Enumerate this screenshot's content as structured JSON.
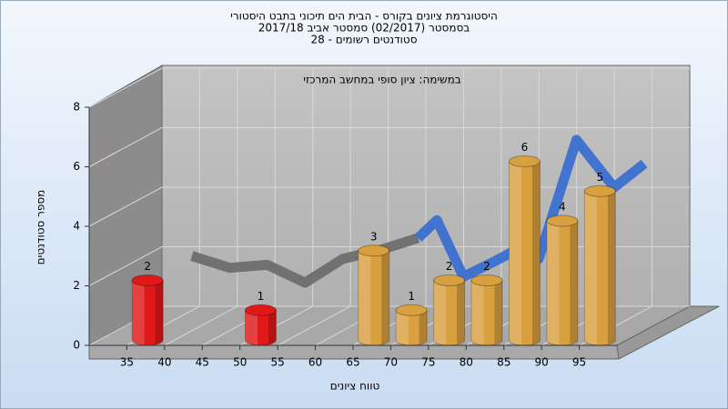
{
  "chart_data": {
    "type": "histogram",
    "title_lines": [
      "היסטוגרמת ציונים בקורס - הבית הים תיכוני בתבט היסטורי",
      "בסמסטר  (02/2017)  סמסטר אביב 2017/18",
      "סטודנטים רשומים - 28"
    ],
    "subtitle": "במשימה: ציון סופי במחשב המרכזי",
    "x_label": "טווח ציונים",
    "y_label": "מספר סטודנטים",
    "bins": [
      35,
      40,
      45,
      50,
      55,
      60,
      65,
      70,
      75,
      80,
      85,
      90,
      95,
      100
    ],
    "values": [
      2,
      0,
      0,
      1,
      0,
      0,
      3,
      1,
      2,
      2,
      6,
      4,
      5
    ],
    "colors": [
      "#e01818",
      "#e01818",
      "#e01818",
      "#e01818",
      "#d9a040",
      "#d9a040",
      "#d9a040",
      "#d9a040",
      "#d9a040",
      "#d9a040",
      "#d9a040",
      "#d9a040",
      "#d9a040"
    ],
    "xlim": [
      30,
      100
    ],
    "xticks": [
      35,
      40,
      45,
      50,
      55,
      60,
      65,
      70,
      75,
      80,
      85,
      90,
      95
    ],
    "ylim": [
      0,
      8
    ],
    "yticks": [
      0,
      2,
      4,
      6,
      8
    ],
    "grid": true,
    "trend": [
      {
        "color": "#6e6e6e",
        "x": [
          40,
          45,
          50,
          55,
          60,
          65,
          70
        ],
        "values": [
          2.7,
          2.3,
          2.4,
          1.8,
          2.6,
          2.9,
          3.3
        ]
      },
      {
        "color": "#3a6fd0",
        "x": [
          70,
          72.5,
          76,
          80,
          83,
          86,
          91,
          96,
          100
        ],
        "values": [
          3.3,
          3.9,
          2.0,
          2.5,
          2.9,
          2.6,
          6.6,
          5.0,
          5.8
        ]
      }
    ]
  }
}
